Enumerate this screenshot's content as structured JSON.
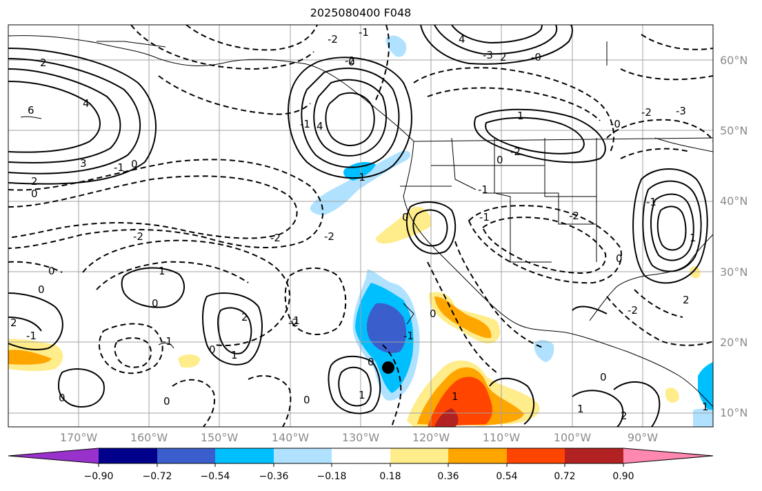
{
  "title": "2025080400 F048",
  "lat_labels": [
    "60°N",
    "50°N",
    "40°N",
    "30°N",
    "20°N",
    "10°N"
  ],
  "lon_labels": [
    "170°W",
    "160°W",
    "150°W",
    "140°W",
    "130°W",
    "120°W",
    "110°W",
    "100°W",
    "90°W"
  ],
  "colorbar": {
    "colors": [
      "#9932cc",
      "#00008b",
      "#3a5fcd",
      "#00bfff",
      "#b0e2ff",
      "#ffffff",
      "#ffec8b",
      "#ffa500",
      "#ff4500",
      "#b22222",
      "#ff88b0"
    ],
    "tick_labels": [
      "−0.90",
      "−0.72",
      "−0.54",
      "−0.36",
      "−0.18",
      "0.18",
      "0.36",
      "0.54",
      "0.72",
      "0.90"
    ]
  },
  "contour_labels": [
    "2",
    "-2",
    "0",
    "-2",
    "-1",
    "0",
    "2",
    "3",
    "-2",
    "2",
    "0",
    "-0",
    "1",
    "-1",
    "-2",
    "6",
    "4",
    "3",
    "2",
    "0",
    "-1",
    "-1",
    "0",
    "-2",
    "-2",
    "-2",
    "0",
    "-1",
    "1",
    "0",
    "1",
    "0",
    "-2",
    "-1",
    "2",
    "0",
    "-1",
    "0",
    "0",
    "-1",
    "-1",
    "1",
    "0",
    "-1",
    "0",
    "1",
    "-1",
    "2",
    "0",
    "-1",
    "-1",
    "-2",
    "-2",
    "-3",
    "2",
    "-1",
    "-0",
    "-1",
    "0",
    "1",
    "1",
    "0",
    "0",
    "-2",
    "-2",
    "0",
    "1",
    "-1",
    "0",
    "0",
    "0",
    "1",
    "2",
    "-2",
    "-2",
    "-1",
    "1",
    "-2",
    "0",
    "0"
  ],
  "marker": {
    "label": "storm-center"
  },
  "colors": {
    "land_lines": "#000000",
    "grid": "#a0a0a0",
    "axis_labels": "#8a8a8a"
  }
}
